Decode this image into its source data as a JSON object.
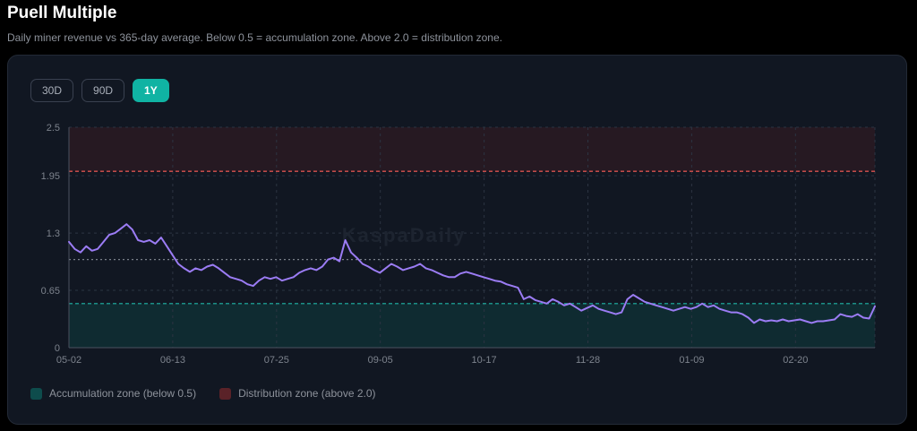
{
  "header": {
    "title": "Puell Multiple",
    "subtitle": "Daily miner revenue vs 365-day average. Below 0.5 = accumulation zone. Above 2.0 = distribution zone."
  },
  "range_tabs": [
    {
      "label": "30D",
      "active": false
    },
    {
      "label": "90D",
      "active": false
    },
    {
      "label": "1Y",
      "active": true
    }
  ],
  "watermark": "KaspaDaily",
  "legend": {
    "accumulation": {
      "label": "Accumulation zone (below 0.5)",
      "color": "#0e4c4c"
    },
    "distribution": {
      "label": "Distribution zone (above 2.0)",
      "color": "#5a2228"
    }
  },
  "colors": {
    "line": "#9b7cf4",
    "distribution_line": "#d9534f",
    "accumulation_line": "#20b7a8",
    "grid": "#2c3442",
    "axis_text": "#7d838d"
  },
  "chart_data": {
    "type": "line",
    "title": "",
    "xlabel": "",
    "ylabel": "",
    "ylim": [
      0,
      2.5
    ],
    "y_ticks": [
      0,
      0.65,
      1.3,
      1.95,
      2.5
    ],
    "x_tick_labels": [
      "05-02",
      "06-13",
      "07-25",
      "09-05",
      "10-17",
      "11-28",
      "01-09",
      "02-20"
    ],
    "grid": true,
    "thresholds": {
      "accumulation": 0.5,
      "distribution": 2.0,
      "neutral": 1.0
    },
    "series": [
      {
        "values": [
          1.2,
          1.12,
          1.08,
          1.15,
          1.1,
          1.12,
          1.2,
          1.28,
          1.3,
          1.35,
          1.4,
          1.34,
          1.22,
          1.2,
          1.22,
          1.18,
          1.25,
          1.15,
          1.05,
          0.95,
          0.9,
          0.86,
          0.9,
          0.88,
          0.92,
          0.94,
          0.9,
          0.85,
          0.8,
          0.78,
          0.76,
          0.72,
          0.7,
          0.76,
          0.8,
          0.78,
          0.8,
          0.76,
          0.78,
          0.8,
          0.85,
          0.88,
          0.9,
          0.88,
          0.92,
          1.0,
          1.02,
          0.98,
          1.22,
          1.08,
          1.02,
          0.95,
          0.92,
          0.88,
          0.85,
          0.9,
          0.95,
          0.92,
          0.88,
          0.9,
          0.92,
          0.95,
          0.9,
          0.88,
          0.85,
          0.82,
          0.8,
          0.8,
          0.84,
          0.86,
          0.84,
          0.82,
          0.8,
          0.78,
          0.76,
          0.75,
          0.72,
          0.7,
          0.68,
          0.55,
          0.58,
          0.54,
          0.52,
          0.5,
          0.55,
          0.52,
          0.48,
          0.5,
          0.46,
          0.42,
          0.45,
          0.48,
          0.44,
          0.42,
          0.4,
          0.38,
          0.4,
          0.55,
          0.6,
          0.56,
          0.52,
          0.5,
          0.48,
          0.46,
          0.44,
          0.42,
          0.44,
          0.46,
          0.44,
          0.46,
          0.5,
          0.46,
          0.48,
          0.44,
          0.42,
          0.4,
          0.4,
          0.38,
          0.34,
          0.28,
          0.32,
          0.3,
          0.31,
          0.3,
          0.32,
          0.3,
          0.31,
          0.32,
          0.3,
          0.28,
          0.3,
          0.3,
          0.31,
          0.32,
          0.38,
          0.36,
          0.35,
          0.38,
          0.34,
          0.33,
          0.47
        ]
      }
    ]
  }
}
